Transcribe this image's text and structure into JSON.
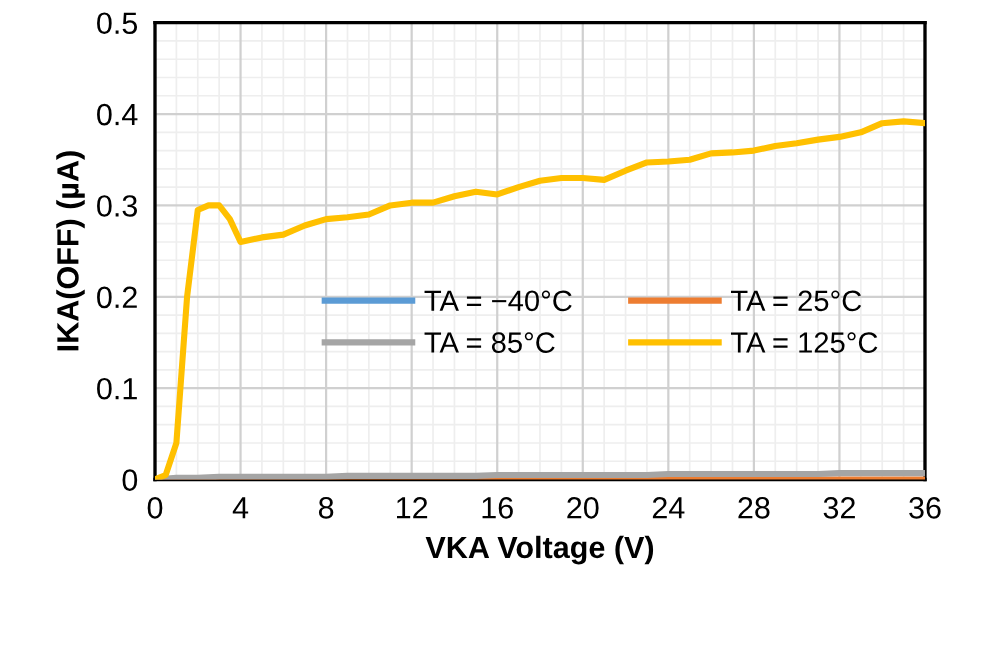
{
  "chart_data": {
    "type": "line",
    "xlabel": "VKA Voltage (V)",
    "ylabel": "IKA(OFF) (µA)",
    "x": [
      0,
      1,
      2,
      3,
      4,
      5,
      6,
      7,
      8,
      9,
      10,
      11,
      12,
      13,
      14,
      15,
      16,
      17,
      18,
      19,
      20,
      21,
      22,
      23,
      24,
      25,
      26,
      27,
      28,
      29,
      30,
      31,
      32,
      33,
      34,
      35,
      36
    ],
    "series": [
      {
        "name": "TA = −40°C",
        "color": "#5b9bd5",
        "values": [
          null,
          null,
          null,
          null,
          null,
          null,
          null,
          null,
          null,
          null,
          null,
          null,
          null,
          null,
          null,
          null,
          null,
          null,
          null,
          null,
          null,
          null,
          null,
          null,
          null,
          null,
          null,
          null,
          null,
          null,
          null,
          null,
          null,
          null,
          null,
          null,
          null
        ]
      },
      {
        "name": "TA = 25°C",
        "color": "#ed7d31",
        "values": [
          0,
          0,
          0,
          0,
          0,
          0,
          0,
          0,
          0,
          0,
          0,
          0,
          0,
          0,
          0,
          0,
          0,
          0,
          0,
          0,
          0,
          0,
          0,
          0,
          0,
          0,
          0,
          0,
          0,
          0,
          0,
          0,
          0,
          0,
          0,
          0,
          0
        ]
      },
      {
        "name": "TA = 85°C",
        "color": "#a5a5a5",
        "values": [
          0,
          0.002,
          0.002,
          0.003,
          0.003,
          0.003,
          0.003,
          0.003,
          0.003,
          0.004,
          0.004,
          0.004,
          0.004,
          0.004,
          0.004,
          0.004,
          0.005,
          0.005,
          0.005,
          0.005,
          0.005,
          0.005,
          0.005,
          0.005,
          0.006,
          0.006,
          0.006,
          0.006,
          0.006,
          0.006,
          0.006,
          0.006,
          0.007,
          0.007,
          0.007,
          0.007,
          0.007
        ]
      },
      {
        "name": "TA = 125°C",
        "color": "#ffc000",
        "x": [
          0,
          0.5,
          1,
          1.5,
          2,
          2.5,
          3,
          3.5,
          4,
          5,
          6,
          7,
          8,
          9,
          10,
          11,
          12,
          13,
          14,
          15,
          16,
          17,
          18,
          19,
          20,
          21,
          22,
          23,
          24,
          25,
          26,
          27,
          28,
          29,
          30,
          31,
          32,
          33,
          34,
          35,
          36
        ],
        "values": [
          0,
          0.005,
          0.04,
          0.2,
          0.295,
          0.3,
          0.3,
          0.285,
          0.26,
          0.265,
          0.268,
          0.278,
          0.285,
          0.287,
          0.29,
          0.3,
          0.303,
          0.303,
          0.31,
          0.315,
          0.312,
          0.32,
          0.327,
          0.33,
          0.33,
          0.328,
          0.338,
          0.347,
          0.348,
          0.35,
          0.357,
          0.358,
          0.36,
          0.365,
          0.368,
          0.372,
          0.375,
          0.38,
          0.39,
          0.392,
          0.39
        ]
      }
    ],
    "xlim": [
      0,
      36
    ],
    "xticks": [
      0,
      4,
      8,
      12,
      16,
      20,
      24,
      28,
      32,
      36
    ],
    "ylim": [
      0,
      0.5
    ],
    "yticks": [
      0,
      0.1,
      0.2,
      0.3,
      0.4,
      0.5
    ],
    "grid": true,
    "legend": "center",
    "marker": "none",
    "line_style": "solid"
  }
}
